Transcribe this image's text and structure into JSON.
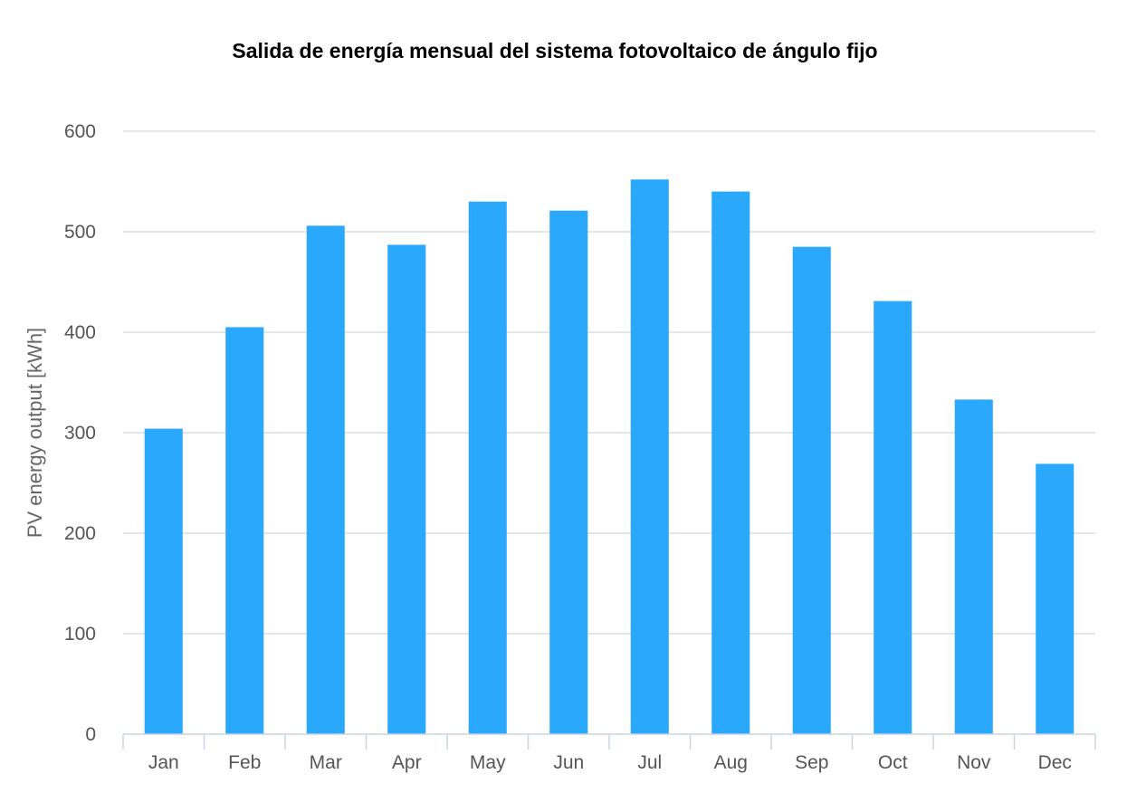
{
  "chart_data": {
    "type": "bar",
    "title": "Salida de energía mensual del sistema fotovoltaico de ángulo fijo",
    "xlabel": "",
    "ylabel": "PV energy output [kWh]",
    "categories": [
      "Jan",
      "Feb",
      "Mar",
      "Apr",
      "May",
      "Jun",
      "Jul",
      "Aug",
      "Sep",
      "Oct",
      "Nov",
      "Dec"
    ],
    "values": [
      304,
      405,
      506,
      487,
      530,
      521,
      552,
      540,
      485,
      431,
      333,
      269
    ],
    "ylim": [
      0,
      600
    ],
    "yticks": [
      0,
      100,
      200,
      300,
      400,
      500,
      600
    ],
    "grid": true,
    "legend": "none",
    "bar_color": "#2aa8fb"
  }
}
